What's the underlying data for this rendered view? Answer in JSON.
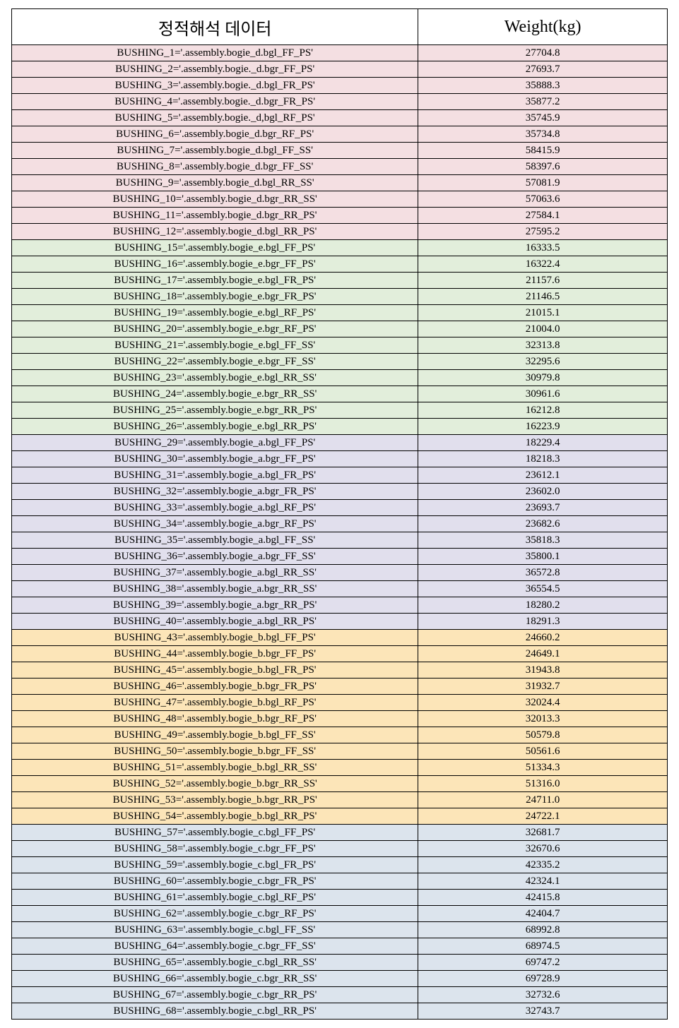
{
  "header": {
    "col1": "정적해석 데이터",
    "col2": "Weight(kg)"
  },
  "groups": [
    {
      "bg": "#f4dfe2",
      "rows": [
        {
          "label": "BUSHING_1='.assembly.bogie_d.bgl_FF_PS'",
          "weight": "27704.8"
        },
        {
          "label": "BUSHING_2='.assembly.bogie._d.bgr_FF_PS'",
          "weight": "27693.7"
        },
        {
          "label": "BUSHING_3='.assembly.bogie._d.bgl_FR_PS'",
          "weight": "35888.3"
        },
        {
          "label": "BUSHING_4='.assembly.bogie._d.bgr_FR_PS'",
          "weight": "35877.2"
        },
        {
          "label": "BUSHING_5='.assembly.bogie._d,bgl_RF_PS'",
          "weight": "35745.9"
        },
        {
          "label": "BUSHING_6='.assembly.bogie_d.bgr_RF_PS'",
          "weight": "35734.8"
        },
        {
          "label": "BUSHING_7='.assembly.bogie_d.bgl_FF_SS'",
          "weight": "58415.9"
        },
        {
          "label": "BUSHING_8='.assembly.bogie_d.bgr_FF_SS'",
          "weight": "58397.6"
        },
        {
          "label": "BUSHING_9='.assembly.bogie_d.bgl_RR_SS'",
          "weight": "57081.9"
        },
        {
          "label": "BUSHING_10='.assembly.bogie_d.bgr_RR_SS'",
          "weight": "57063.6"
        },
        {
          "label": "BUSHING_11='.assembly.bogie_d.bgr_RR_PS'",
          "weight": "27584.1"
        },
        {
          "label": "BUSHING_12='.assembly.bogie_d.bgl_RR_PS'",
          "weight": "27595.2"
        }
      ]
    },
    {
      "bg": "#e2eedb",
      "rows": [
        {
          "label": "BUSHING_15='.assembly.bogie_e.bgl_FF_PS'",
          "weight": "16333.5"
        },
        {
          "label": "BUSHING_16='.assembly.bogie_e.bgr_FF_PS'",
          "weight": "16322.4"
        },
        {
          "label": "BUSHING_17='.assembly.bogie_e.bgl_FR_PS'",
          "weight": "21157.6"
        },
        {
          "label": "BUSHING_18='.assembly.bogie_e.bgr_FR_PS'",
          "weight": "21146.5"
        },
        {
          "label": "BUSHING_19='.assembly.bogie_e.bgl_RF_PS'",
          "weight": "21015.1"
        },
        {
          "label": "BUSHING_20='.assembly.bogie_e.bgr_RF_PS'",
          "weight": "21004.0"
        },
        {
          "label": "BUSHING_21='.assembly.bogie_e.bgl_FF_SS'",
          "weight": "32313.8"
        },
        {
          "label": "BUSHING_22='.assembly.bogie_e.bgr_FF_SS'",
          "weight": "32295.6"
        },
        {
          "label": "BUSHING_23='.assembly.bogie_e.bgl_RR_SS'",
          "weight": "30979.8"
        },
        {
          "label": "BUSHING_24='.assembly.bogie_e.bgr_RR_SS'",
          "weight": "30961.6"
        },
        {
          "label": "BUSHING_25='.assembly.bogie_e.bgr_RR_PS'",
          "weight": "16212.8"
        },
        {
          "label": "BUSHING_26='.assembly.bogie_e.bgl_RR_PS'",
          "weight": "16223.9"
        }
      ]
    },
    {
      "bg": "#e1dfed",
      "rows": [
        {
          "label": "BUSHING_29='.assembly.bogie_a.bgl_FF_PS'",
          "weight": "18229.4"
        },
        {
          "label": "BUSHING_30='.assembly.bogie_a.bgr_FF_PS'",
          "weight": "18218.3"
        },
        {
          "label": "BUSHING_31='.assembly.bogie_a.bgl_FR_PS'",
          "weight": "23612.1"
        },
        {
          "label": "BUSHING_32='.assembly.bogie_a.bgr_FR_PS'",
          "weight": "23602.0"
        },
        {
          "label": "BUSHING_33='.assembly.bogie_a.bgl_RF_PS'",
          "weight": "23693.7"
        },
        {
          "label": "BUSHING_34='.assembly.bogie_a.bgr_RF_PS'",
          "weight": "23682.6"
        },
        {
          "label": "BUSHING_35='.assembly.bogie_a.bgl_FF_SS'",
          "weight": "35818.3"
        },
        {
          "label": "BUSHING_36='.assembly.bogie_a.bgr_FF_SS'",
          "weight": "35800.1"
        },
        {
          "label": "BUSHING_37='.assembly.bogie_a.bgl_RR_SS'",
          "weight": "36572.8"
        },
        {
          "label": "BUSHING_38='.assembly.bogie_a.bgr_RR_SS'",
          "weight": "36554.5"
        },
        {
          "label": "BUSHING_39='.assembly.bogie_a.bgr_RR_PS'",
          "weight": "18280.2"
        },
        {
          "label": "BUSHING_40='.assembly.bogie_a.bgl_RR_PS'",
          "weight": "18291.3"
        }
      ]
    },
    {
      "bg": "#fce5b8",
      "rows": [
        {
          "label": "BUSHING_43='.assembly.bogie_b.bgl_FF_PS'",
          "weight": "24660.2"
        },
        {
          "label": "BUSHING_44='.assembly.bogie_b.bgr_FF_PS'",
          "weight": "24649.1"
        },
        {
          "label": "BUSHING_45='.assembly.bogie_b.bgl_FR_PS'",
          "weight": "31943.8"
        },
        {
          "label": "BUSHING_46='.assembly.bogie_b.bgr_FR_PS'",
          "weight": "31932.7"
        },
        {
          "label": "BUSHING_47='.assembly.bogie_b.bgl_RF_PS'",
          "weight": "32024.4"
        },
        {
          "label": "BUSHING_48='.assembly.bogie_b.bgr_RF_PS'",
          "weight": "32013.3"
        },
        {
          "label": "BUSHING_49='.assembly.bogie_b.bgl_FF_SS'",
          "weight": "50579.8"
        },
        {
          "label": "BUSHING_50='.assembly.bogie_b.bgr_FF_SS'",
          "weight": "50561.6"
        },
        {
          "label": "BUSHING_51='.assembly.bogie_b.bgl_RR_SS'",
          "weight": "51334.3"
        },
        {
          "label": "BUSHING_52='.assembly.bogie_b.bgr_RR_SS'",
          "weight": "51316.0"
        },
        {
          "label": "BUSHING_53='.assembly.bogie_b.bgr_RR_PS'",
          "weight": "24711.0"
        },
        {
          "label": "BUSHING_54='.assembly.bogie_b.bgl_RR_PS'",
          "weight": "24722.1"
        }
      ]
    },
    {
      "bg": "#dce4ed",
      "rows": [
        {
          "label": "BUSHING_57='.assembly.bogie_c.bgl_FF_PS'",
          "weight": "32681.7"
        },
        {
          "label": "BUSHING_58='.assembly.bogie_c.bgr_FF_PS'",
          "weight": "32670.6"
        },
        {
          "label": "BUSHING_59='.assembly.bogie_c.bgl_FR_PS'",
          "weight": "42335.2"
        },
        {
          "label": "BUSHING_60='.assembly.bogie_c.bgr_FR_PS'",
          "weight": "42324.1"
        },
        {
          "label": "BUSHING_61='.assembly.bogie_c.bgl_RF_PS'",
          "weight": "42415.8"
        },
        {
          "label": "BUSHING_62='.assembly.bogie_c.bgr_RF_PS'",
          "weight": "42404.7"
        },
        {
          "label": "BUSHING_63='.assembly.bogie_c.bgl_FF_SS'",
          "weight": "68992.8"
        },
        {
          "label": "BUSHING_64='.assembly.bogie_c.bgr_FF_SS'",
          "weight": "68974.5"
        },
        {
          "label": "BUSHING_65='.assembly.bogie_c.bgl_RR_SS'",
          "weight": "69747.2"
        },
        {
          "label": "BUSHING_66='.assembly.bogie_c.bgr_RR_SS'",
          "weight": "69728.9"
        },
        {
          "label": "BUSHING_67='.assembly.bogie_c.bgr_RR_PS'",
          "weight": "32732.6"
        },
        {
          "label": "BUSHING_68='.assembly.bogie_c.bgl_RR_PS'",
          "weight": "32743.7"
        }
      ]
    }
  ]
}
